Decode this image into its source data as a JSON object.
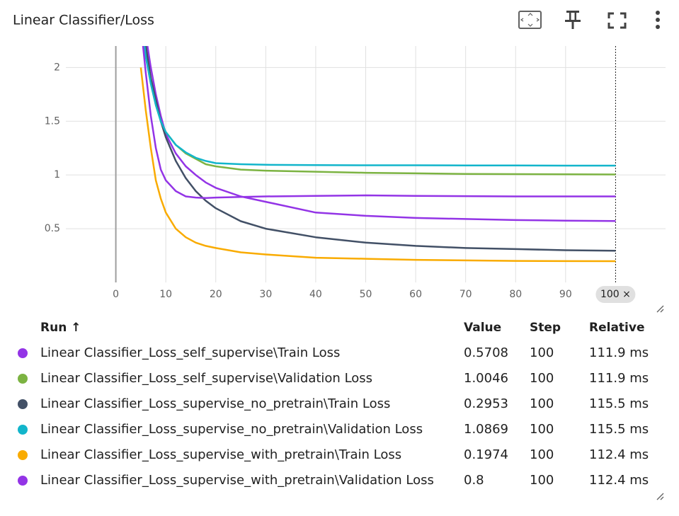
{
  "chart_data": {
    "type": "line",
    "title": "Linear Classifier/Loss",
    "x": [
      5,
      6,
      7,
      8,
      9,
      10,
      12,
      14,
      16,
      18,
      20,
      25,
      30,
      40,
      50,
      60,
      70,
      80,
      90,
      100
    ],
    "xlim": [
      -10,
      110
    ],
    "ylim": [
      0,
      2.2
    ],
    "xticks": [
      0,
      10,
      20,
      30,
      40,
      50,
      60,
      70,
      80,
      90,
      {
        "value": 100,
        "label": "100 ×"
      }
    ],
    "yticks": [
      0.5,
      1,
      1.5,
      2
    ],
    "grid": true,
    "series": [
      {
        "name": "Linear Classifier_Loss_self_supervise\\Train Loss",
        "color": "#9334e6",
        "values": [
          2.6,
          2.3,
          2.0,
          1.75,
          1.55,
          1.38,
          1.2,
          1.08,
          1.0,
          0.93,
          0.88,
          0.8,
          0.75,
          0.65,
          0.62,
          0.6,
          0.59,
          0.58,
          0.575,
          0.5708
        ]
      },
      {
        "name": "Linear Classifier_Loss_self_supervise\\Validation Loss",
        "color": "#7cb342",
        "values": [
          2.5,
          2.1,
          1.85,
          1.65,
          1.5,
          1.4,
          1.28,
          1.2,
          1.15,
          1.1,
          1.08,
          1.05,
          1.04,
          1.03,
          1.02,
          1.015,
          1.01,
          1.008,
          1.006,
          1.0046
        ]
      },
      {
        "name": "Linear Classifier_Loss_supervise_no_pretrain\\Train Loss",
        "color": "#425066",
        "values": [
          2.6,
          2.2,
          1.9,
          1.7,
          1.5,
          1.35,
          1.13,
          0.97,
          0.85,
          0.76,
          0.69,
          0.57,
          0.5,
          0.42,
          0.37,
          0.34,
          0.32,
          0.31,
          0.3,
          0.2953
        ]
      },
      {
        "name": "Linear Classifier_Loss_supervise_no_pretrain\\Validation Loss",
        "color": "#12b5cb",
        "values": [
          2.5,
          2.1,
          1.85,
          1.65,
          1.5,
          1.4,
          1.28,
          1.21,
          1.16,
          1.13,
          1.11,
          1.1,
          1.095,
          1.092,
          1.09,
          1.09,
          1.089,
          1.088,
          1.087,
          1.0869
        ]
      },
      {
        "name": "Linear Classifier_Loss_supervise_with_pretrain\\Train Loss",
        "color": "#f9ab00",
        "values": [
          2.0,
          1.6,
          1.25,
          0.95,
          0.78,
          0.65,
          0.5,
          0.42,
          0.37,
          0.34,
          0.32,
          0.28,
          0.26,
          0.23,
          0.22,
          0.21,
          0.205,
          0.2,
          0.198,
          0.1974
        ]
      },
      {
        "name": "Linear Classifier_Loss_supervise_with_pretrain\\Validation Loss",
        "color": "#9334e6",
        "values": [
          2.4,
          1.95,
          1.55,
          1.25,
          1.05,
          0.95,
          0.85,
          0.8,
          0.79,
          0.785,
          0.79,
          0.795,
          0.8,
          0.805,
          0.81,
          0.805,
          0.803,
          0.8,
          0.8,
          0.8
        ]
      }
    ]
  },
  "table": {
    "columns": [
      "Run ↑",
      "Value",
      "Step",
      "Relative"
    ],
    "relative": [
      "111.9 ms",
      "111.9 ms",
      "115.5 ms",
      "115.5 ms",
      "112.4 ms",
      "112.4 ms"
    ]
  }
}
